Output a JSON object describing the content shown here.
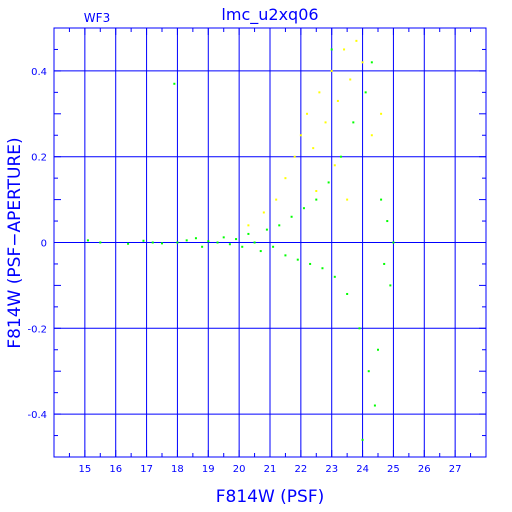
{
  "chart_data": {
    "type": "scatter",
    "title": "lmc_u2xq06",
    "panel_label": "WF3",
    "xlabel": "F814W (PSF)",
    "ylabel": "F814W (PSF−APERTURE)",
    "xlim": [
      14,
      28
    ],
    "ylim": [
      -0.5,
      0.5
    ],
    "x_ticks": [
      "15",
      "16",
      "17",
      "18",
      "19",
      "20",
      "21",
      "22",
      "23",
      "24",
      "25",
      "26",
      "27"
    ],
    "y_ticks": [
      "0.4",
      "0.2",
      "0",
      "-0.2",
      "-0.4"
    ],
    "grid": true,
    "colors": {
      "axes": "#0000ff",
      "series_green": "#00ff00",
      "series_yellow": "#ffff00"
    },
    "series": [
      {
        "color": "green",
        "points": [
          [
            15.1,
            0.005
          ],
          [
            15.5,
            0.0
          ],
          [
            16.4,
            -0.003
          ],
          [
            16.9,
            0.004
          ],
          [
            17.2,
            0.0
          ],
          [
            17.5,
            -0.002
          ],
          [
            17.9,
            0.37
          ],
          [
            18.0,
            0.0
          ],
          [
            18.3,
            0.005
          ],
          [
            18.6,
            0.01
          ],
          [
            18.8,
            -0.01
          ],
          [
            19.0,
            0.003
          ],
          [
            19.3,
            0.0
          ],
          [
            19.5,
            0.012
          ],
          [
            19.7,
            -0.004
          ],
          [
            19.9,
            0.008
          ],
          [
            20.1,
            -0.01
          ],
          [
            20.3,
            0.02
          ],
          [
            20.5,
            0.0
          ],
          [
            20.7,
            -0.02
          ],
          [
            20.9,
            0.03
          ],
          [
            21.1,
            -0.01
          ],
          [
            21.3,
            0.04
          ],
          [
            21.5,
            -0.03
          ],
          [
            21.7,
            0.06
          ],
          [
            21.9,
            -0.04
          ],
          [
            22.1,
            0.08
          ],
          [
            22.3,
            -0.05
          ],
          [
            22.5,
            0.1
          ],
          [
            22.7,
            -0.06
          ],
          [
            22.9,
            0.14
          ],
          [
            23.1,
            -0.08
          ],
          [
            23.3,
            0.2
          ],
          [
            23.5,
            -0.12
          ],
          [
            23.7,
            0.28
          ],
          [
            23.9,
            -0.2
          ],
          [
            24.1,
            0.35
          ],
          [
            24.2,
            -0.3
          ],
          [
            24.3,
            0.42
          ],
          [
            24.4,
            -0.38
          ],
          [
            24.5,
            -0.25
          ],
          [
            24.6,
            0.1
          ],
          [
            24.7,
            -0.05
          ],
          [
            24.8,
            0.05
          ],
          [
            24.9,
            -0.1
          ],
          [
            25.0,
            0.0
          ],
          [
            23.0,
            0.45
          ],
          [
            24.0,
            -0.46
          ]
        ]
      },
      {
        "color": "yellow",
        "points": [
          [
            20.3,
            0.04
          ],
          [
            20.8,
            0.07
          ],
          [
            21.2,
            0.1
          ],
          [
            21.5,
            0.15
          ],
          [
            21.8,
            0.2
          ],
          [
            22.0,
            0.25
          ],
          [
            22.2,
            0.3
          ],
          [
            22.4,
            0.22
          ],
          [
            22.6,
            0.35
          ],
          [
            22.8,
            0.28
          ],
          [
            23.0,
            0.4
          ],
          [
            23.2,
            0.33
          ],
          [
            23.4,
            0.45
          ],
          [
            23.6,
            0.38
          ],
          [
            23.8,
            0.47
          ],
          [
            22.5,
            0.12
          ],
          [
            23.1,
            0.18
          ],
          [
            23.5,
            0.1
          ],
          [
            24.0,
            0.42
          ],
          [
            24.3,
            0.25
          ],
          [
            24.6,
            0.3
          ]
        ]
      }
    ]
  }
}
